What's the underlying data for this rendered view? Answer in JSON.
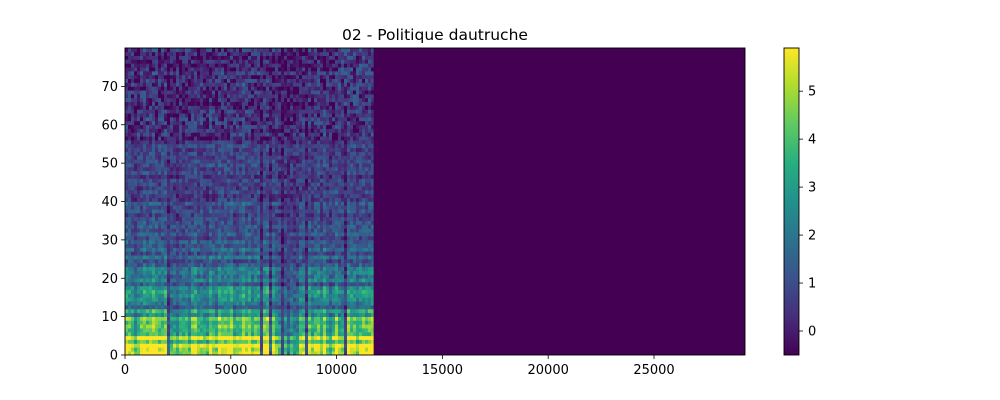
{
  "chart_data": {
    "type": "heatmap",
    "title": "02 - Politique dautruche",
    "xlabel": "",
    "ylabel": "",
    "x_range": [
      0,
      29300
    ],
    "y_range": [
      0,
      80
    ],
    "x_ticks": [
      0,
      5000,
      10000,
      15000,
      20000,
      25000
    ],
    "x_tick_labels": [
      "0",
      "5000",
      "10000",
      "15000",
      "20000",
      "25000"
    ],
    "y_ticks": [
      0,
      10,
      20,
      30,
      40,
      50,
      60,
      70
    ],
    "y_tick_labels": [
      "0",
      "10",
      "20",
      "30",
      "40",
      "50",
      "60",
      "70"
    ],
    "colormap": "viridis",
    "color_range": [
      -0.5,
      5.9
    ],
    "colorbar_ticks": [
      0,
      1,
      2,
      3,
      4,
      5
    ],
    "colorbar_tick_labels": [
      "0",
      "1",
      "2",
      "3",
      "4",
      "5"
    ],
    "signal_end_x": 11750,
    "fill_value": -0.5,
    "grid": false
  }
}
